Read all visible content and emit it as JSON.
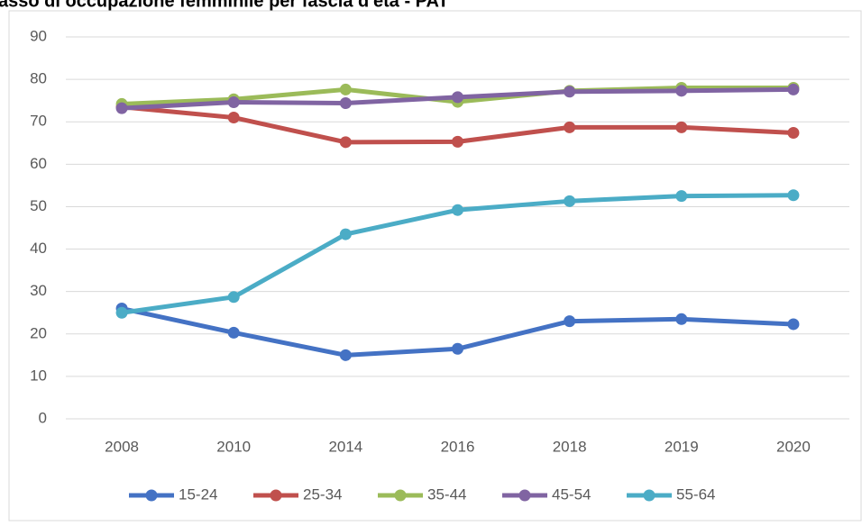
{
  "chart_data": {
    "type": "line",
    "title": "asso di occupazione femminile per fascia d'età - PAT",
    "categories": [
      "2008",
      "2010",
      "2014",
      "2016",
      "2018",
      "2019",
      "2020"
    ],
    "series": [
      {
        "name": "15-24",
        "color": "#4472c4",
        "values": [
          26,
          20.3,
          15,
          16.5,
          23,
          23.5,
          22.3
        ]
      },
      {
        "name": "25-34",
        "color": "#c0504d",
        "values": [
          73.5,
          71,
          65.2,
          65.3,
          68.7,
          68.7,
          67.4
        ]
      },
      {
        "name": "35-44",
        "color": "#9bbb59",
        "values": [
          74.2,
          75.3,
          77.6,
          74.7,
          77.3,
          78,
          78
        ]
      },
      {
        "name": "45-54",
        "color": "#8064a2",
        "values": [
          73.2,
          74.6,
          74.4,
          75.8,
          77.1,
          77.3,
          77.6
        ]
      },
      {
        "name": "55-64",
        "color": "#4bacc6",
        "values": [
          25,
          28.7,
          43.5,
          49.2,
          51.3,
          52.5,
          52.7
        ]
      }
    ],
    "ylim": [
      0,
      90
    ],
    "yticks": [
      0,
      10,
      20,
      30,
      40,
      50,
      60,
      70,
      80,
      90
    ],
    "grid": true,
    "legend": "bottom"
  }
}
